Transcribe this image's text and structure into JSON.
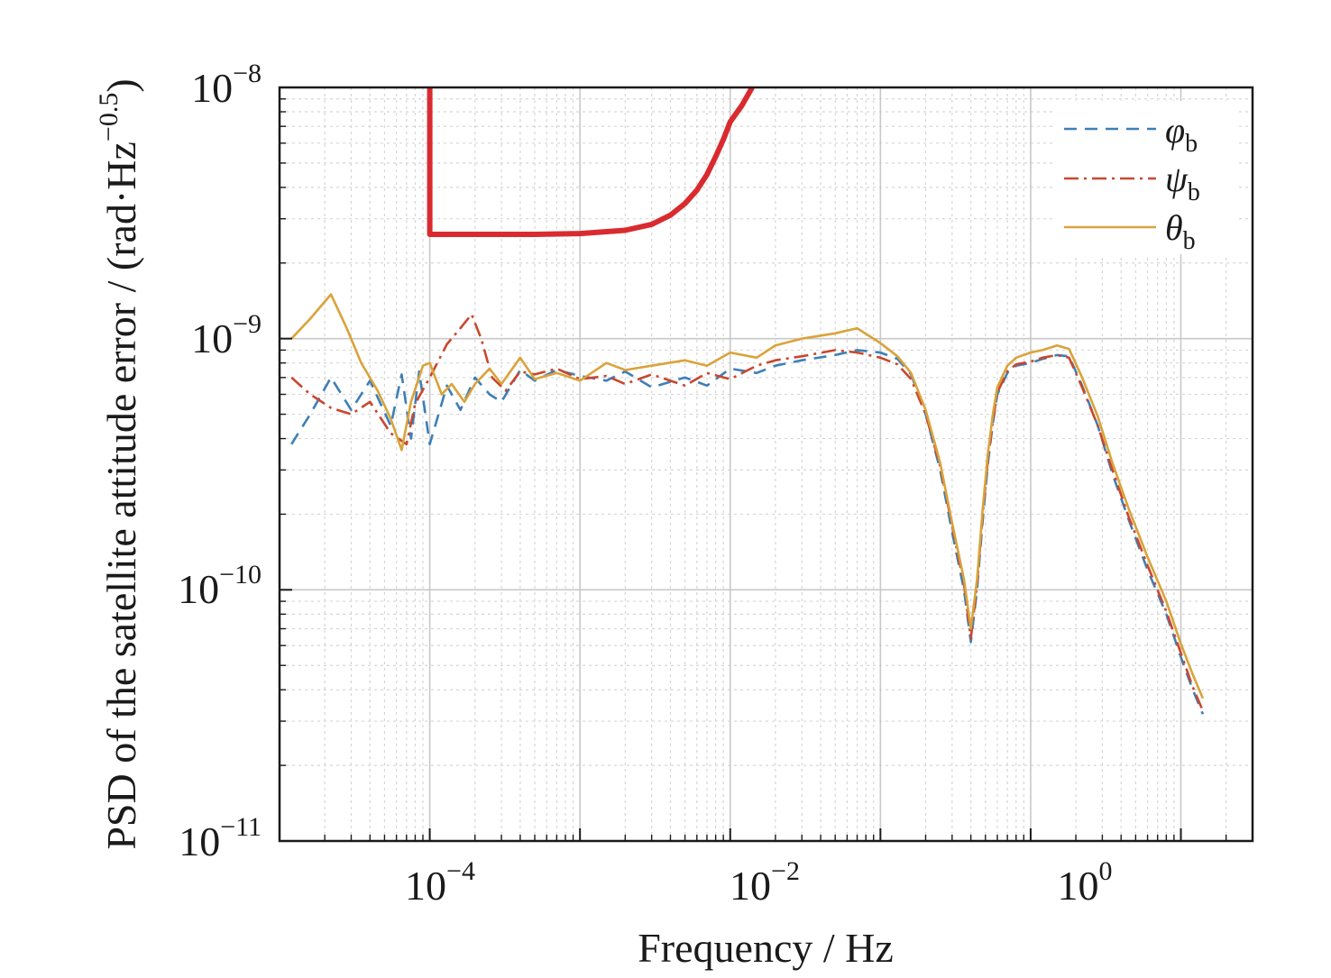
{
  "chart_data": {
    "type": "line",
    "xscale": "log",
    "yscale": "log",
    "xlim": [
      1e-05,
      30
    ],
    "ylim": [
      1e-11,
      1e-08
    ],
    "xlabel": "Frequency / Hz",
    "ylabel_main": "PSD of the satellite attitude error / (rad·Hz",
    "ylabel_exp": "−0.5",
    "ylabel_close": ")",
    "grid": true,
    "legend_position": "top-right",
    "x_ticks": [
      {
        "value": 0.0001,
        "base": "10",
        "exp": "−4"
      },
      {
        "value": 0.01,
        "base": "10",
        "exp": "−2"
      },
      {
        "value": 1,
        "base": "10",
        "exp": "0"
      }
    ],
    "y_ticks": [
      {
        "value": 1e-08,
        "base": "10",
        "exp": "−8"
      },
      {
        "value": 1e-09,
        "base": "10",
        "exp": "−9"
      },
      {
        "value": 1e-10,
        "base": "10",
        "exp": "−10"
      },
      {
        "value": 1e-11,
        "base": "10",
        "exp": "−11"
      }
    ],
    "requirement": {
      "color": "#d92b2f",
      "x": [
        0.0001,
        0.0001,
        0.0002,
        0.0005,
        0.001,
        0.002,
        0.003,
        0.004,
        0.005,
        0.006,
        0.007,
        0.008,
        0.009,
        0.01,
        0.012,
        0.014
      ],
      "y": [
        1e-08,
        2.6e-09,
        2.6e-09,
        2.6e-09,
        2.62e-09,
        2.7e-09,
        2.85e-09,
        3.1e-09,
        3.45e-09,
        3.9e-09,
        4.5e-09,
        5.3e-09,
        6.2e-09,
        7.3e-09,
        8.5e-09,
        1e-08
      ]
    },
    "series": [
      {
        "name": "φ",
        "sub": "b",
        "color": "#3d7fb7",
        "dash": "14 9",
        "x": [
          1.2e-05,
          1.6e-05,
          2.2e-05,
          3e-05,
          4e-05,
          5.5e-05,
          6.5e-05,
          7.5e-05,
          8.5e-05,
          0.0001,
          0.00013,
          0.00016,
          0.0002,
          0.00025,
          0.0003,
          0.0004,
          0.0005,
          0.0007,
          0.001,
          0.0015,
          0.002,
          0.003,
          0.005,
          0.007,
          0.01,
          0.015,
          0.02,
          0.03,
          0.05,
          0.07,
          0.1,
          0.13,
          0.16,
          0.2,
          0.25,
          0.3,
          0.36,
          0.4,
          0.44,
          0.48,
          0.52,
          0.56,
          0.6,
          0.7,
          0.8,
          1,
          1.2,
          1.5,
          1.8,
          2.2,
          2.8,
          3.5,
          4.5,
          6,
          8,
          10,
          12,
          14
        ],
        "y": [
          3.8e-10,
          5e-10,
          7e-10,
          5.2e-10,
          6.8e-10,
          4.5e-10,
          7.2e-10,
          4e-10,
          7.4e-10,
          3.8e-10,
          6.5e-10,
          5.2e-10,
          7e-10,
          6e-10,
          5.6e-10,
          7.5e-10,
          6.8e-10,
          7.5e-10,
          7.1e-10,
          6.8e-10,
          7.4e-10,
          6.4e-10,
          7e-10,
          6.5e-10,
          7.6e-10,
          7.3e-10,
          7.8e-10,
          8.2e-10,
          8.6e-10,
          9e-10,
          8.8e-10,
          8.3e-10,
          7.2e-10,
          5e-10,
          3e-10,
          1.7e-10,
          1e-10,
          6.2e-11,
          1e-10,
          1.9e-10,
          3.2e-10,
          4.6e-10,
          6e-10,
          7.3e-10,
          7.8e-10,
          8e-10,
          8.3e-10,
          8.6e-10,
          8.5e-10,
          6.5e-10,
          4.5e-10,
          2.9e-10,
          1.9e-10,
          1.2e-10,
          8e-11,
          5.4e-11,
          4e-11,
          3.2e-11
        ]
      },
      {
        "name": "ψ",
        "sub": "b",
        "color": "#c9472e",
        "dash": "16 6 3 6",
        "x": [
          1.2e-05,
          1.6e-05,
          2.2e-05,
          3e-05,
          4e-05,
          5.5e-05,
          7e-05,
          8e-05,
          0.0001,
          0.00013,
          0.00016,
          0.00019,
          0.00022,
          0.00026,
          0.00032,
          0.0004,
          0.0005,
          0.0007,
          0.001,
          0.0015,
          0.002,
          0.003,
          0.005,
          0.007,
          0.01,
          0.015,
          0.02,
          0.03,
          0.05,
          0.07,
          0.1,
          0.13,
          0.16,
          0.2,
          0.25,
          0.3,
          0.36,
          0.4,
          0.44,
          0.48,
          0.52,
          0.56,
          0.6,
          0.7,
          0.8,
          1,
          1.2,
          1.5,
          1.8,
          2.2,
          2.8,
          3.5,
          4.5,
          6,
          8,
          10,
          12,
          14
        ],
        "y": [
          7e-10,
          6e-10,
          5.3e-10,
          5e-10,
          5.6e-10,
          4.2e-10,
          3.8e-10,
          5.5e-10,
          7e-10,
          9.5e-10,
          1.1e-09,
          1.25e-09,
          1e-09,
          7e-10,
          6.2e-10,
          7.4e-10,
          7.2e-10,
          7.6e-10,
          6.9e-10,
          7.1e-10,
          6.6e-10,
          7.2e-10,
          6.5e-10,
          7.3e-10,
          6.9e-10,
          7.8e-10,
          8.2e-10,
          8.5e-10,
          9e-10,
          8.8e-10,
          8.4e-10,
          7.9e-10,
          6.9e-10,
          5e-10,
          3.1e-10,
          1.8e-10,
          1.05e-10,
          6.4e-11,
          1.05e-10,
          2e-10,
          3.3e-10,
          4.7e-10,
          6.1e-10,
          7.4e-10,
          7.9e-10,
          8.1e-10,
          8.4e-10,
          8.6e-10,
          8.4e-10,
          6.4e-10,
          4.5e-10,
          3e-10,
          1.95e-10,
          1.25e-10,
          8.2e-11,
          5.6e-11,
          4.1e-11,
          3.3e-11
        ]
      },
      {
        "name": "θ",
        "sub": "b",
        "color": "#d9a33a",
        "dash": "",
        "x": [
          1.2e-05,
          1.6e-05,
          2.2e-05,
          2.8e-05,
          3.5e-05,
          4.5e-05,
          5.5e-05,
          6.5e-05,
          7.5e-05,
          9e-05,
          0.0001,
          0.00012,
          0.00014,
          0.00017,
          0.0002,
          0.00025,
          0.0003,
          0.0004,
          0.0005,
          0.0007,
          0.001,
          0.0015,
          0.002,
          0.003,
          0.005,
          0.007,
          0.01,
          0.015,
          0.02,
          0.03,
          0.05,
          0.07,
          0.1,
          0.13,
          0.16,
          0.2,
          0.25,
          0.3,
          0.36,
          0.4,
          0.44,
          0.48,
          0.52,
          0.56,
          0.6,
          0.7,
          0.8,
          1,
          1.2,
          1.5,
          1.8,
          2.2,
          2.8,
          3.5,
          4.5,
          6,
          8,
          10,
          12,
          14
        ],
        "y": [
          1e-09,
          1.2e-09,
          1.5e-09,
          1.1e-09,
          8e-10,
          6.2e-10,
          4.8e-10,
          3.6e-10,
          5.6e-10,
          7.8e-10,
          8e-10,
          6e-10,
          6.6e-10,
          5.6e-10,
          6.6e-10,
          7.6e-10,
          6.6e-10,
          8.4e-10,
          6.9e-10,
          7.3e-10,
          6.8e-10,
          8e-10,
          7.5e-10,
          7.8e-10,
          8.2e-10,
          7.8e-10,
          8.8e-10,
          8.4e-10,
          9.4e-10,
          1e-09,
          1.05e-09,
          1.1e-09,
          9.6e-10,
          8.5e-10,
          7.3e-10,
          5.2e-10,
          3.2e-10,
          1.85e-10,
          1.1e-10,
          7e-11,
          1.1e-10,
          2.1e-10,
          3.5e-10,
          5e-10,
          6.4e-10,
          7.8e-10,
          8.4e-10,
          8.8e-10,
          9e-10,
          9.4e-10,
          9.1e-10,
          7e-10,
          4.9e-10,
          3.2e-10,
          2.1e-10,
          1.35e-10,
          9e-11,
          6.1e-11,
          4.6e-11,
          3.7e-11
        ]
      }
    ]
  }
}
